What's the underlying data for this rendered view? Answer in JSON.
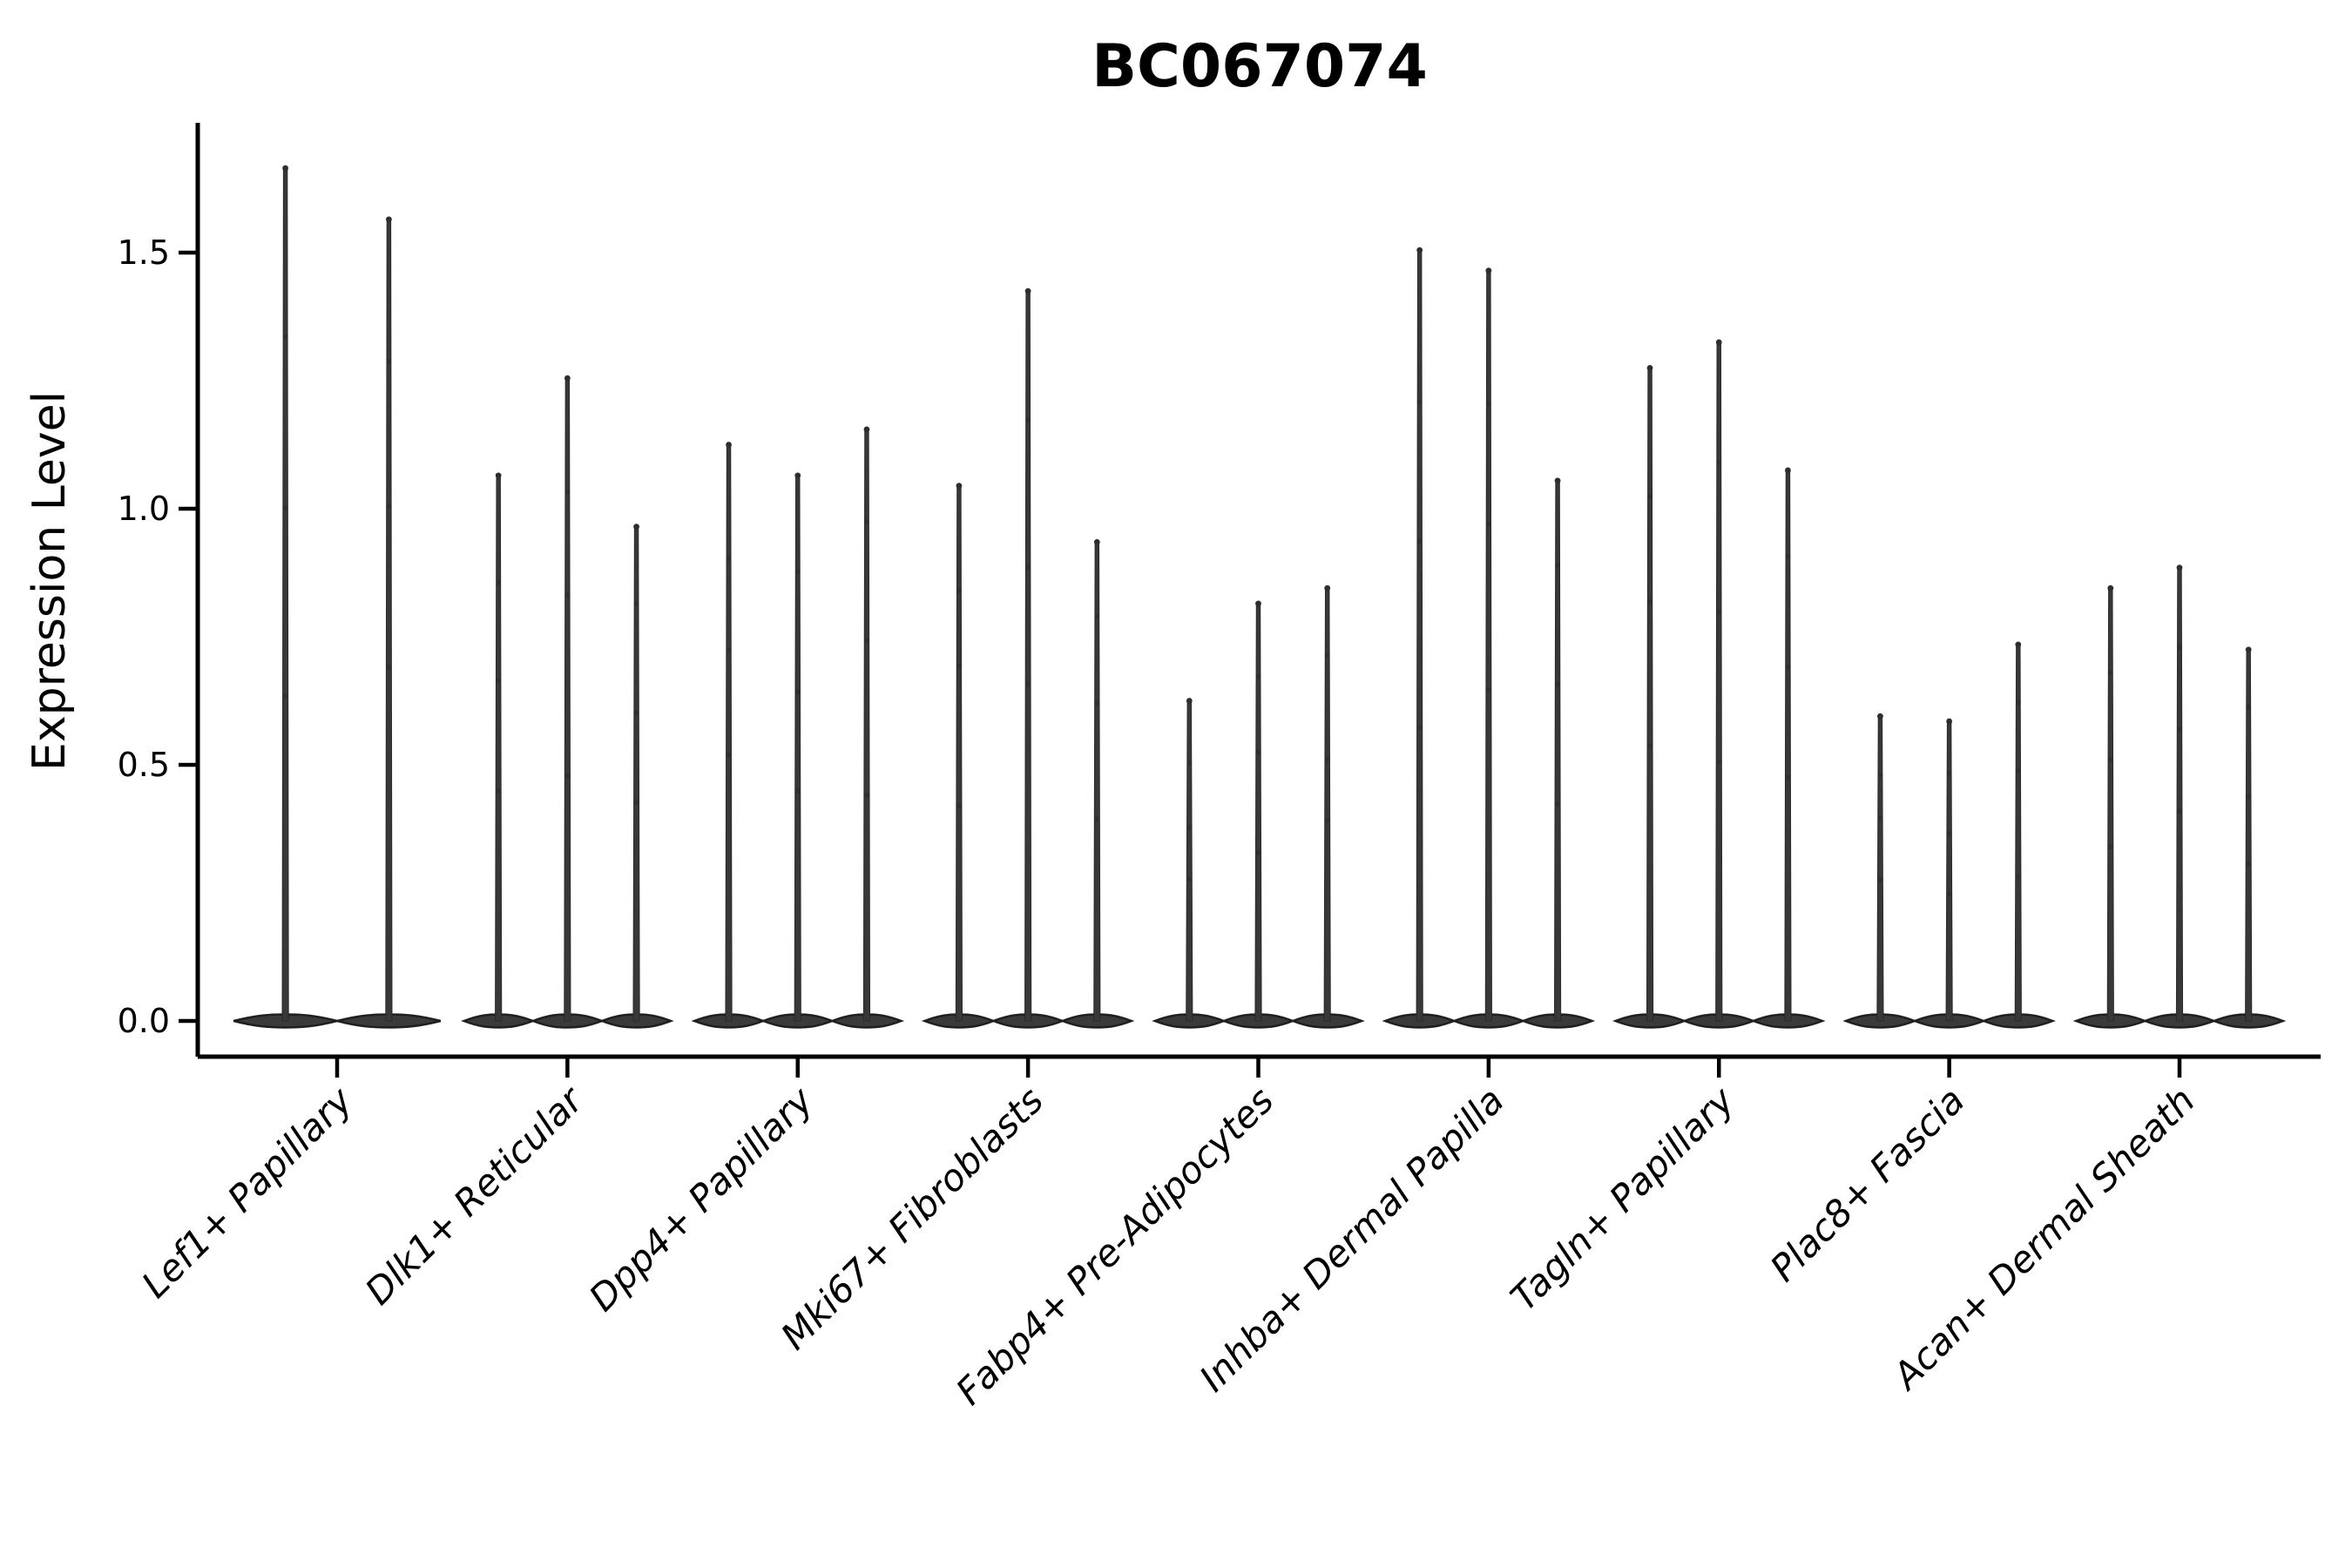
{
  "chart_data": {
    "type": "violin",
    "title": "BC067074",
    "xlabel": "",
    "ylabel": "Expression Level",
    "ylim": [
      -0.07,
      1.75
    ],
    "yticks": [
      0.0,
      0.5,
      1.0,
      1.5
    ],
    "ytick_labels": [
      "0.0",
      "0.5",
      "1.0",
      "1.5"
    ],
    "grid": false,
    "legend": "none",
    "x_label_rotation_deg": 45,
    "x_label_style": "italic",
    "baseline_value": 0.0,
    "violin_shape": "dense flat lens at zero with thin spike to maximum",
    "categories": [
      "Lef1+ Papillary",
      "Dlk1+ Reticular",
      "Dpp4+ Papillary",
      "Mki67+ Fibroblasts",
      "Fabp4+ Pre-Adipocytes",
      "Inhba+ Dermal Papilla",
      "Tagln+ Papillary",
      "Plac8+ Fascia",
      "Acan+ Dermal Sheath"
    ],
    "groups": [
      {
        "category": "Lef1+ Papillary",
        "violin_max_values": [
          1.67,
          1.57
        ]
      },
      {
        "category": "Dlk1+ Reticular",
        "violin_max_values": [
          1.07,
          1.26,
          0.97
        ]
      },
      {
        "category": "Dpp4+ Papillary",
        "violin_max_values": [
          1.13,
          1.07,
          1.16
        ]
      },
      {
        "category": "Mki67+ Fibroblasts",
        "violin_max_values": [
          1.05,
          1.43,
          0.94
        ]
      },
      {
        "category": "Fabp4+ Pre-Adipocytes",
        "violin_max_values": [
          0.63,
          0.82,
          0.85
        ]
      },
      {
        "category": "Inhba+ Dermal Papilla",
        "violin_max_values": [
          1.51,
          1.47,
          1.06
        ]
      },
      {
        "category": "Tagln+ Papillary",
        "violin_max_values": [
          1.28,
          1.33,
          1.08
        ]
      },
      {
        "category": "Plac8+ Fascia",
        "violin_max_values": [
          0.6,
          0.59,
          0.74
        ]
      },
      {
        "category": "Acan+ Dermal Sheath",
        "violin_max_values": [
          0.85,
          0.89,
          0.73
        ]
      }
    ],
    "colors": {
      "ink": "#000000",
      "violin_fill": "#3a3a3a",
      "violin_edge": "#1f1f1f",
      "background": "#ffffff"
    }
  }
}
